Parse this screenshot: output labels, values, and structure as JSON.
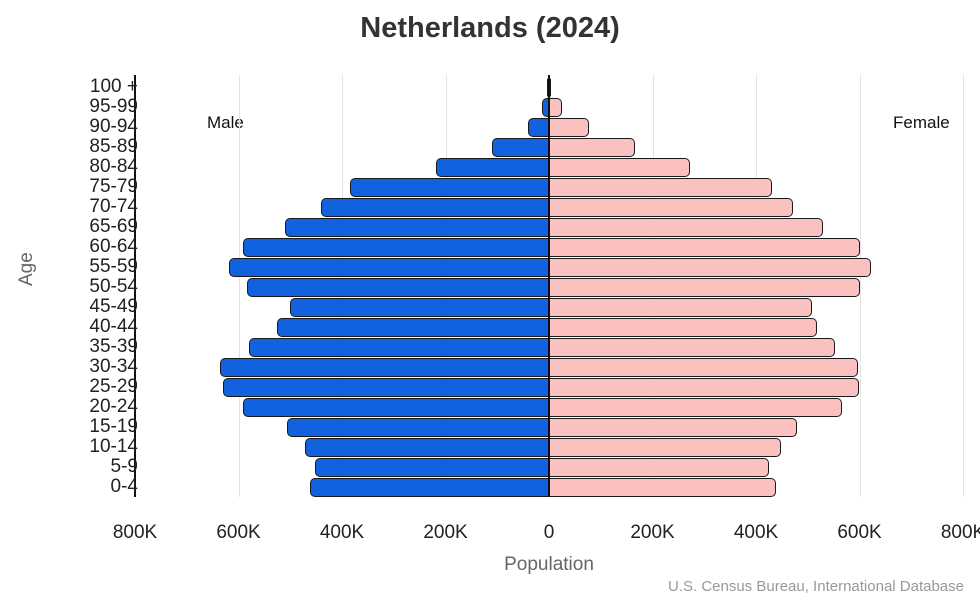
{
  "title": "Netherlands (2024)",
  "labels": {
    "male": "Male",
    "female": "Female",
    "xlabel": "Population",
    "ylabel": "Age",
    "source": "U.S. Census Bureau, International Database"
  },
  "colors": {
    "male": "#1262e0",
    "female": "#fbc1c1",
    "border": "#1a1a1a",
    "grid": "#e3e3e3"
  },
  "chart_data": {
    "type": "bar",
    "orientation": "horizontal-population-pyramid",
    "title": "Netherlands (2024)",
    "xlabel": "Population",
    "ylabel": "Age",
    "x_ticks": [
      "800K",
      "600K",
      "400K",
      "200K",
      "0",
      "200K",
      "400K",
      "600K",
      "800K"
    ],
    "xlim": [
      -800000,
      800000
    ],
    "grid": true,
    "legend": {
      "left": "Male",
      "right": "Female"
    },
    "categories": [
      "0-4",
      "5-9",
      "10-14",
      "15-19",
      "20-24",
      "25-29",
      "30-34",
      "35-39",
      "40-44",
      "45-49",
      "50-54",
      "55-59",
      "60-64",
      "65-69",
      "70-74",
      "75-79",
      "80-84",
      "85-89",
      "90-94",
      "95-99",
      "100 +"
    ],
    "series": [
      {
        "name": "Male",
        "values": [
          462000,
          452000,
          471000,
          506000,
          591000,
          630000,
          636000,
          580000,
          526000,
          500000,
          584000,
          618000,
          591000,
          510000,
          440000,
          385000,
          218000,
          111000,
          40000,
          13000,
          1500
        ]
      },
      {
        "name": "Female",
        "values": [
          439000,
          425000,
          448000,
          479000,
          566000,
          599000,
          597000,
          553000,
          518000,
          508000,
          601000,
          622000,
          601000,
          530000,
          471000,
          431000,
          272000,
          166000,
          77000,
          25000,
          3000
        ]
      }
    ],
    "source": "U.S. Census Bureau, International Database"
  }
}
